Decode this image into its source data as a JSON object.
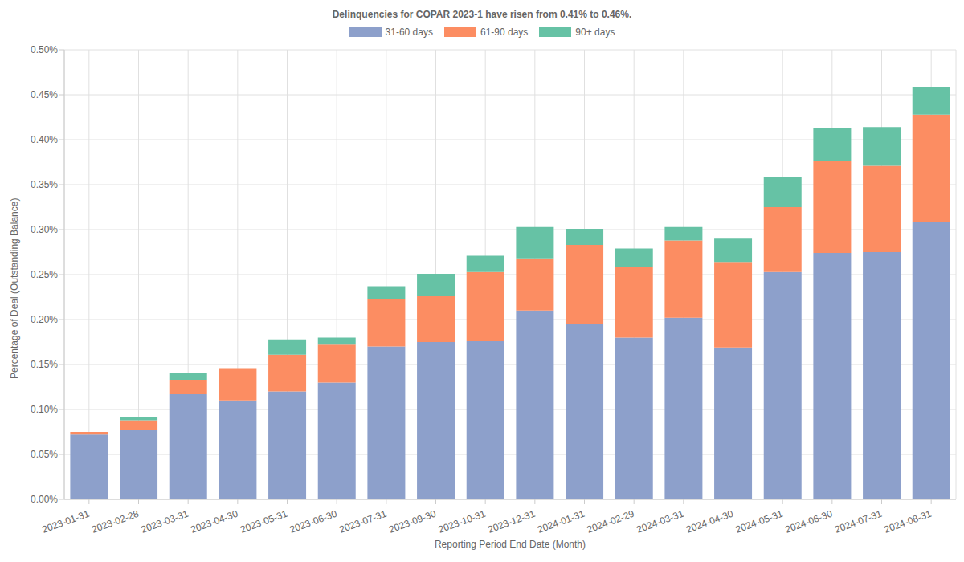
{
  "chart_data": {
    "type": "bar",
    "title": "Delinquencies for COPAR 2023-1 have risen from 0.41% to 0.46%.",
    "x_label": "Reporting Period End Date (Month)",
    "y_label": "Percentage of Deal (Outstanding Balance)",
    "categories": [
      "2023-01-31",
      "2023-02-28",
      "2023-03-31",
      "2023-04-30",
      "2023-05-31",
      "2023-06-30",
      "2023-07-31",
      "2023-09-30",
      "2023-10-31",
      "2023-12-31",
      "2024-01-31",
      "2024-02-29",
      "2024-03-31",
      "2024-04-30",
      "2024-05-31",
      "2024-06-30",
      "2024-07-31",
      "2024-08-31"
    ],
    "series": [
      {
        "name": "31-60 days",
        "color": "#8da0cb",
        "values": [
          0.072,
          0.077,
          0.117,
          0.11,
          0.12,
          0.13,
          0.17,
          0.175,
          0.176,
          0.21,
          0.195,
          0.18,
          0.202,
          0.169,
          0.253,
          0.274,
          0.275,
          0.308
        ]
      },
      {
        "name": "61-90 days",
        "color": "#fc8d62",
        "values": [
          0.003,
          0.011,
          0.016,
          0.036,
          0.041,
          0.042,
          0.053,
          0.051,
          0.077,
          0.058,
          0.088,
          0.078,
          0.086,
          0.095,
          0.072,
          0.102,
          0.096,
          0.12
        ]
      },
      {
        "name": "90+ days",
        "color": "#66c2a5",
        "values": [
          0,
          0.004,
          0.008,
          0,
          0.017,
          0.008,
          0.014,
          0.025,
          0.018,
          0.035,
          0.018,
          0.021,
          0.015,
          0.026,
          0.034,
          0.037,
          0.043,
          0.031
        ]
      }
    ],
    "ylim": [
      0,
      0.5
    ],
    "yticks": [
      {
        "value": 0,
        "label": "0.00%"
      },
      {
        "value": 0.05,
        "label": "0.05%"
      },
      {
        "value": 0.1,
        "label": "0.10%"
      },
      {
        "value": 0.15,
        "label": "0.15%"
      },
      {
        "value": 0.2,
        "label": "0.20%"
      },
      {
        "value": 0.25,
        "label": "0.25%"
      },
      {
        "value": 0.3,
        "label": "0.30%"
      },
      {
        "value": 0.35,
        "label": "0.35%"
      },
      {
        "value": 0.4,
        "label": "0.40%"
      },
      {
        "value": 0.45,
        "label": "0.45%"
      },
      {
        "value": 0.5,
        "label": "0.50%"
      }
    ],
    "stacked": true,
    "grid": true,
    "legend": "top"
  }
}
